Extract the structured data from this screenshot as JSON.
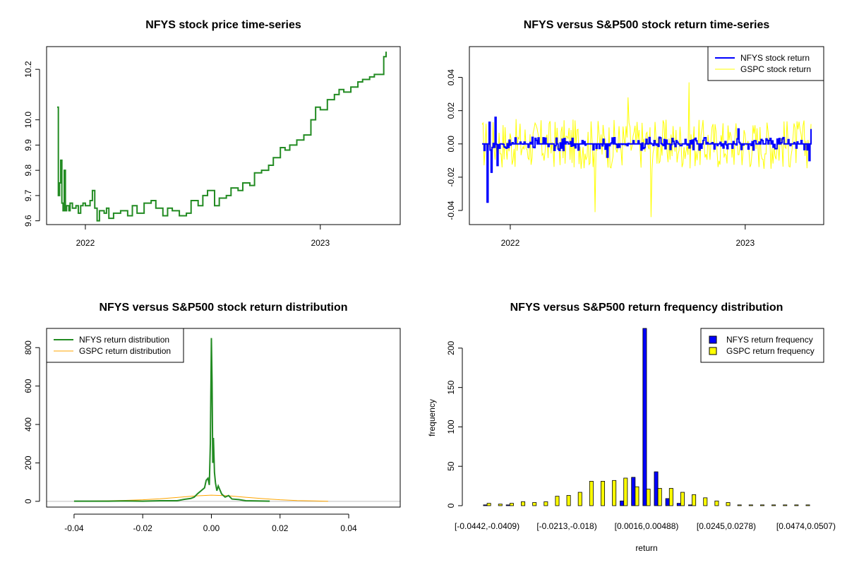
{
  "colors": {
    "nfys_price": "#228b22",
    "nfys_return": "#0000ff",
    "gspc_return": "#ffff00",
    "nfys_density": "#228b22",
    "gspc_density": "#ffa500",
    "zero_line": "#bebebe"
  },
  "chart_data": [
    {
      "id": "price",
      "type": "line",
      "title": "NFYS stock price time-series",
      "xlabel": "",
      "ylabel": "",
      "x_range": [
        2021.88,
        2023.28
      ],
      "xticks": [
        {
          "value": 2022.0,
          "label": "2022"
        },
        {
          "value": 2023.0,
          "label": "2023"
        }
      ],
      "ylim": [
        9.585,
        10.29
      ],
      "yticks": [
        9.6,
        9.7,
        9.8,
        9.9,
        10.0,
        10.2
      ],
      "ytick_labels": [
        "9.6",
        "9.7",
        "9.8",
        "9.9",
        "10.0",
        "10.2"
      ],
      "series": [
        {
          "name": "NFYS",
          "style": "step",
          "x": [
            2021.88,
            2021.885,
            2021.89,
            2021.895,
            2021.9,
            2021.905,
            2021.91,
            2021.915,
            2021.92,
            2021.93,
            2021.935,
            2021.945,
            2021.96,
            2021.97,
            2021.98,
            2021.99,
            2022.0,
            2022.02,
            2022.03,
            2022.04,
            2022.05,
            2022.06,
            2022.08,
            2022.09,
            2022.1,
            2022.12,
            2022.15,
            2022.18,
            2022.2,
            2022.22,
            2022.25,
            2022.28,
            2022.3,
            2022.33,
            2022.35,
            2022.37,
            2022.4,
            2022.43,
            2022.45,
            2022.48,
            2022.5,
            2022.52,
            2022.55,
            2022.57,
            2022.6,
            2022.62,
            2022.65,
            2022.67,
            2022.7,
            2022.72,
            2022.75,
            2022.78,
            2022.8,
            2022.83,
            2022.85,
            2022.87,
            2022.9,
            2022.93,
            2022.96,
            2022.98,
            2023.0,
            2023.03,
            2023.06,
            2023.08,
            2023.1,
            2023.13,
            2023.16,
            2023.18,
            2023.21,
            2023.23,
            2023.25,
            2023.27,
            2023.28
          ],
          "values": [
            10.05,
            9.7,
            9.75,
            9.84,
            9.67,
            9.64,
            9.8,
            9.64,
            9.66,
            9.64,
            9.67,
            9.65,
            9.66,
            9.63,
            9.66,
            9.67,
            9.66,
            9.68,
            9.72,
            9.65,
            9.6,
            9.64,
            9.63,
            9.65,
            9.61,
            9.63,
            9.64,
            9.62,
            9.66,
            9.63,
            9.67,
            9.68,
            9.65,
            9.62,
            9.65,
            9.64,
            9.62,
            9.63,
            9.68,
            9.66,
            9.7,
            9.72,
            9.66,
            9.69,
            9.7,
            9.73,
            9.72,
            9.75,
            9.74,
            9.79,
            9.8,
            9.82,
            9.85,
            9.89,
            9.88,
            9.9,
            9.92,
            9.94,
            10.0,
            10.05,
            10.04,
            10.08,
            10.1,
            10.12,
            10.11,
            10.13,
            10.15,
            10.16,
            10.17,
            10.18,
            10.18,
            10.25,
            10.27
          ]
        }
      ]
    },
    {
      "id": "returns",
      "type": "line",
      "title": "NFYS versus S&P500 stock return time-series",
      "xlabel": "",
      "ylabel": "",
      "x_range": [
        2021.88,
        2023.28
      ],
      "xticks": [
        {
          "value": 2022.0,
          "label": "2022"
        },
        {
          "value": 2023.0,
          "label": "2023"
        }
      ],
      "ylim": [
        -0.0485,
        0.0585
      ],
      "yticks": [
        -0.04,
        -0.02,
        0.0,
        0.02,
        0.04
      ],
      "ytick_labels": [
        "-0.04",
        "-0.02",
        "0.00",
        "0.02",
        "0.04"
      ],
      "legend": {
        "position": "top-right",
        "entries": [
          "NFYS stock return",
          "GSPC stock return"
        ]
      },
      "series": [
        {
          "name": "NFYS stock return",
          "amplitude": 0.004,
          "spikes": [
            {
              "x": 2021.9,
              "v": -0.035
            },
            {
              "x": 2021.91,
              "v": 0.013
            },
            {
              "x": 2021.92,
              "v": -0.017
            },
            {
              "x": 2021.935,
              "v": 0.016
            },
            {
              "x": 2021.945,
              "v": -0.013
            },
            {
              "x": 2022.41,
              "v": -0.008
            },
            {
              "x": 2022.97,
              "v": 0.009
            },
            {
              "x": 2023.27,
              "v": -0.01
            },
            {
              "x": 2023.28,
              "v": 0.009
            }
          ]
        },
        {
          "name": "GSPC stock return",
          "amplitude": 0.015,
          "spikes": [
            {
              "x": 2022.36,
              "v": -0.041
            },
            {
              "x": 2022.6,
              "v": -0.044
            },
            {
              "x": 2022.76,
              "v": 0.037
            },
            {
              "x": 2022.5,
              "v": 0.028
            }
          ]
        }
      ]
    },
    {
      "id": "density",
      "type": "line",
      "title": "NFYS versus S&P500 stock return distribution",
      "xlabel": "",
      "ylabel": "",
      "xlim": [
        -0.048,
        0.055
      ],
      "xticks": [
        -0.04,
        -0.02,
        0.0,
        0.02,
        0.04
      ],
      "xtick_labels": [
        "-0.04",
        "-0.02",
        "0.00",
        "0.02",
        "0.04"
      ],
      "ylim": [
        -30,
        900
      ],
      "yticks": [
        0,
        200,
        400,
        600,
        800
      ],
      "ytick_labels": [
        "0",
        "200",
        "400",
        "600",
        "800"
      ],
      "legend": {
        "position": "top-left",
        "entries": [
          "NFYS return distribution",
          "GSPC return distribution"
        ]
      },
      "series": [
        {
          "name": "NFYS return distribution",
          "x": [
            -0.04,
            -0.03,
            -0.025,
            -0.02,
            -0.015,
            -0.01,
            -0.008,
            -0.006,
            -0.005,
            -0.004,
            -0.003,
            -0.002,
            -0.0015,
            -0.001,
            -0.0006,
            -0.0003,
            0.0,
            0.0002,
            0.0004,
            0.0006,
            0.0009,
            0.0012,
            0.0016,
            0.002,
            0.003,
            0.004,
            0.005,
            0.006,
            0.008,
            0.01,
            0.013,
            0.017
          ],
          "values": [
            1,
            1,
            2,
            1,
            3,
            3,
            10,
            15,
            22,
            40,
            55,
            70,
            110,
            120,
            85,
            300,
            850,
            620,
            200,
            330,
            150,
            95,
            55,
            80,
            38,
            22,
            30,
            12,
            9,
            3,
            2,
            1
          ]
        },
        {
          "name": "GSPC return distribution",
          "x": [
            -0.04,
            -0.035,
            -0.03,
            -0.025,
            -0.02,
            -0.015,
            -0.01,
            -0.005,
            0.0,
            0.005,
            0.01,
            0.015,
            0.02,
            0.025,
            0.03,
            0.034
          ],
          "values": [
            0.5,
            1.5,
            3,
            5,
            8,
            13,
            20,
            28,
            32,
            29,
            21,
            14,
            8,
            4,
            2,
            0.5
          ]
        }
      ]
    },
    {
      "id": "freq",
      "type": "bar",
      "title": "NFYS versus S&P500 return frequency distribution",
      "xlabel": "return",
      "ylabel": "frequency",
      "ylim": [
        0,
        225
      ],
      "yticks": [
        0,
        50,
        100,
        150,
        200
      ],
      "ytick_labels": [
        "0",
        "50",
        "100",
        "150",
        "200"
      ],
      "category_labels_shown": [
        "[-0.0442,-0.0409)",
        "[-0.0213,-0.018)",
        "[0.0016,0.00488)",
        "[0.0245,0.0278)",
        "[0.0474,0.0507)"
      ],
      "category_label_index": [
        0,
        7,
        14,
        21,
        28
      ],
      "legend": {
        "position": "top-right",
        "entries": [
          "NFYS return frequency",
          "GSPC return frequency"
        ]
      },
      "series": [
        {
          "name": "NFYS return frequency",
          "values": [
            1,
            0,
            1,
            0,
            0,
            0,
            0,
            0,
            0,
            0,
            0,
            0,
            6,
            36,
            225,
            43,
            9,
            3,
            1,
            0,
            0,
            0,
            0,
            0,
            0,
            0,
            0,
            0,
            0
          ]
        },
        {
          "name": "GSPC return frequency",
          "values": [
            3,
            2,
            3,
            5,
            4,
            5,
            12,
            13,
            17,
            31,
            31,
            32,
            35,
            24,
            21,
            22,
            22,
            17,
            14,
            10,
            6,
            4,
            1,
            1,
            1,
            1,
            1,
            1,
            1
          ]
        }
      ]
    }
  ]
}
